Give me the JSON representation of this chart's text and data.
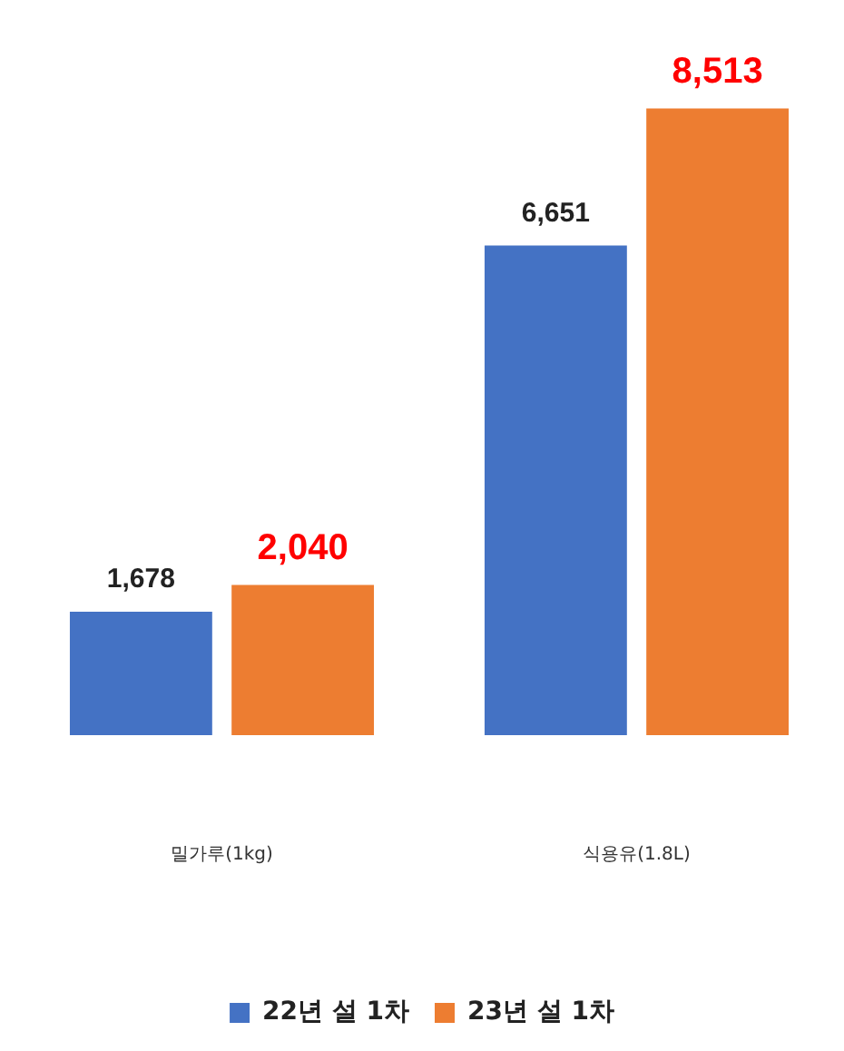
{
  "chart_data": {
    "type": "bar",
    "categories": [
      "밀가루(1kg)",
      "식용유(1.8L)"
    ],
    "series": [
      {
        "name": "22년 설 1차",
        "color": "#4472c4",
        "values": [
          1678,
          6651
        ],
        "value_labels": [
          "1,678",
          "6,651"
        ]
      },
      {
        "name": "23년 설 1차",
        "color": "#ed7d31",
        "values": [
          2040,
          8513
        ],
        "value_labels": [
          "2,040",
          "8,513"
        ]
      }
    ],
    "tick_labels": "x",
    "legend": "bottom",
    "grid": false
  }
}
